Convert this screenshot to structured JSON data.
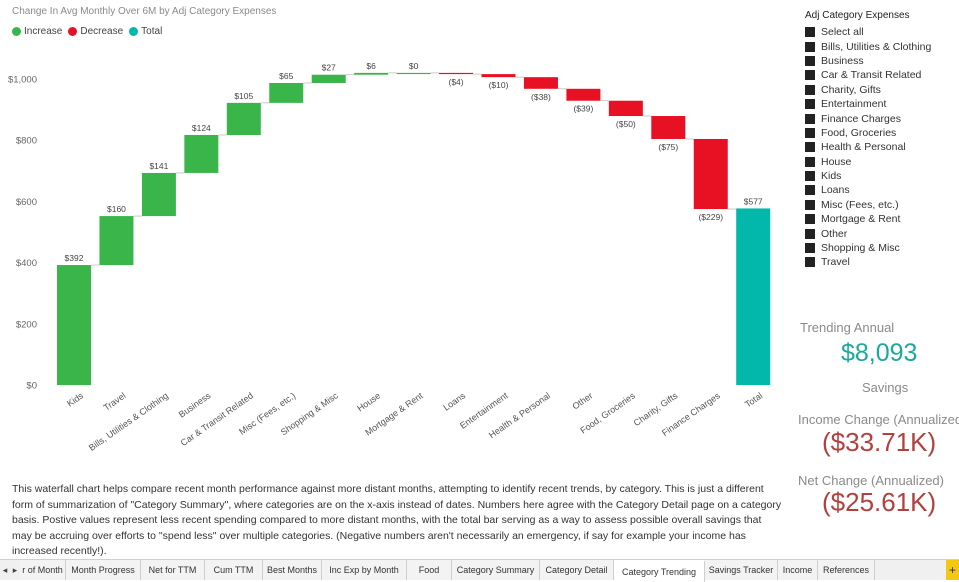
{
  "chart": {
    "title": "Change In Avg Monthly Over 6M by Adj Category Expenses",
    "legend": [
      {
        "label": "Increase",
        "color": "#3ab54a"
      },
      {
        "label": "Decrease",
        "color": "#e81123"
      },
      {
        "label": "Total",
        "color": "#01b8aa"
      }
    ]
  },
  "chart_data": {
    "type": "bar",
    "subtype": "waterfall",
    "title": "Change In Avg Monthly Over 6M by Adj Category Expenses",
    "xlabel": "",
    "ylabel": "",
    "ylim": [
      0,
      1060
    ],
    "yticks": [
      0,
      200,
      400,
      600,
      800,
      1000
    ],
    "ytick_labels": [
      "$0",
      "$200",
      "$400",
      "$600",
      "$800",
      "$1,000"
    ],
    "grid": false,
    "legend_position": "top-left",
    "categories": [
      "Kids",
      "Travel",
      "Bills, Utilities & Clothing",
      "Business",
      "Car & Transit Related",
      "Misc (Fees, etc.)",
      "Shopping & Misc",
      "House",
      "Mortgage & Rent",
      "Loans",
      "Entertainment",
      "Health & Personal",
      "Other",
      "Food, Groceries",
      "Charity, Gifts",
      "Finance Charges",
      "Total"
    ],
    "values": [
      392,
      160,
      141,
      124,
      105,
      65,
      27,
      6,
      0,
      -4,
      -10,
      -38,
      -39,
      -50,
      -75,
      -229,
      577
    ],
    "data_labels": [
      "$392",
      "$160",
      "$141",
      "$124",
      "$105",
      "$65",
      "$27",
      "$6",
      "$0",
      "($4)",
      "($10)",
      "($38)",
      "($39)",
      "($50)",
      "($75)",
      "($229)",
      "$577"
    ]
  },
  "slicer": {
    "title": "Adj Category Expenses",
    "items": [
      "Select all",
      "Bills, Utilities & Clothing",
      "Business",
      "Car & Transit Related",
      "Charity, Gifts",
      "Entertainment",
      "Finance Charges",
      "Food, Groceries",
      "Health & Personal",
      "House",
      "Kids",
      "Loans",
      "Misc (Fees, etc.)",
      "Mortgage & Rent",
      "Other",
      "Shopping & Misc",
      "Travel"
    ]
  },
  "kpis": {
    "trending_label": "Trending Annual",
    "trending_value": "$8,093",
    "savings_label": "Savings",
    "income_label": "Income Change (Annualized)",
    "income_value": "($33.71K)",
    "net_label": "Net Change (Annualized)",
    "net_value": "($25.61K)"
  },
  "description": "This waterfall chart helps compare recent month performance against more distant months, attempting to identify recent trends, by category. This is just a different form of summarization of \"Category Summary\", where categories are on the x-axis instead of dates. Numbers here agree with the Category Detail page on a category basis. Postive values represent less recent spending compared to more distant months, with the total bar serving as a way to assess possible overall savings that may be accruing over efforts to \"spend less\" over multiple categories. (Negative numbers aren't necessarily an emergency, if say for example your income has increased recently!).",
  "tabs": {
    "nav_prev": "◂",
    "nav_next": "▸",
    "add": "+",
    "active_label": "Category Trending",
    "items": [
      {
        "label": "r of Month"
      },
      {
        "label": "Month Progress"
      },
      {
        "label": "Net for TTM"
      },
      {
        "label": "Cum TTM"
      },
      {
        "label": "Best Months"
      },
      {
        "label": "Inc Exp by Month"
      },
      {
        "label": "Food"
      },
      {
        "label": "Category Summary"
      },
      {
        "label": "Category Detail"
      },
      {
        "label": "Category Trending"
      },
      {
        "label": "Savings Tracker"
      },
      {
        "label": "Income"
      },
      {
        "label": "References"
      }
    ]
  }
}
